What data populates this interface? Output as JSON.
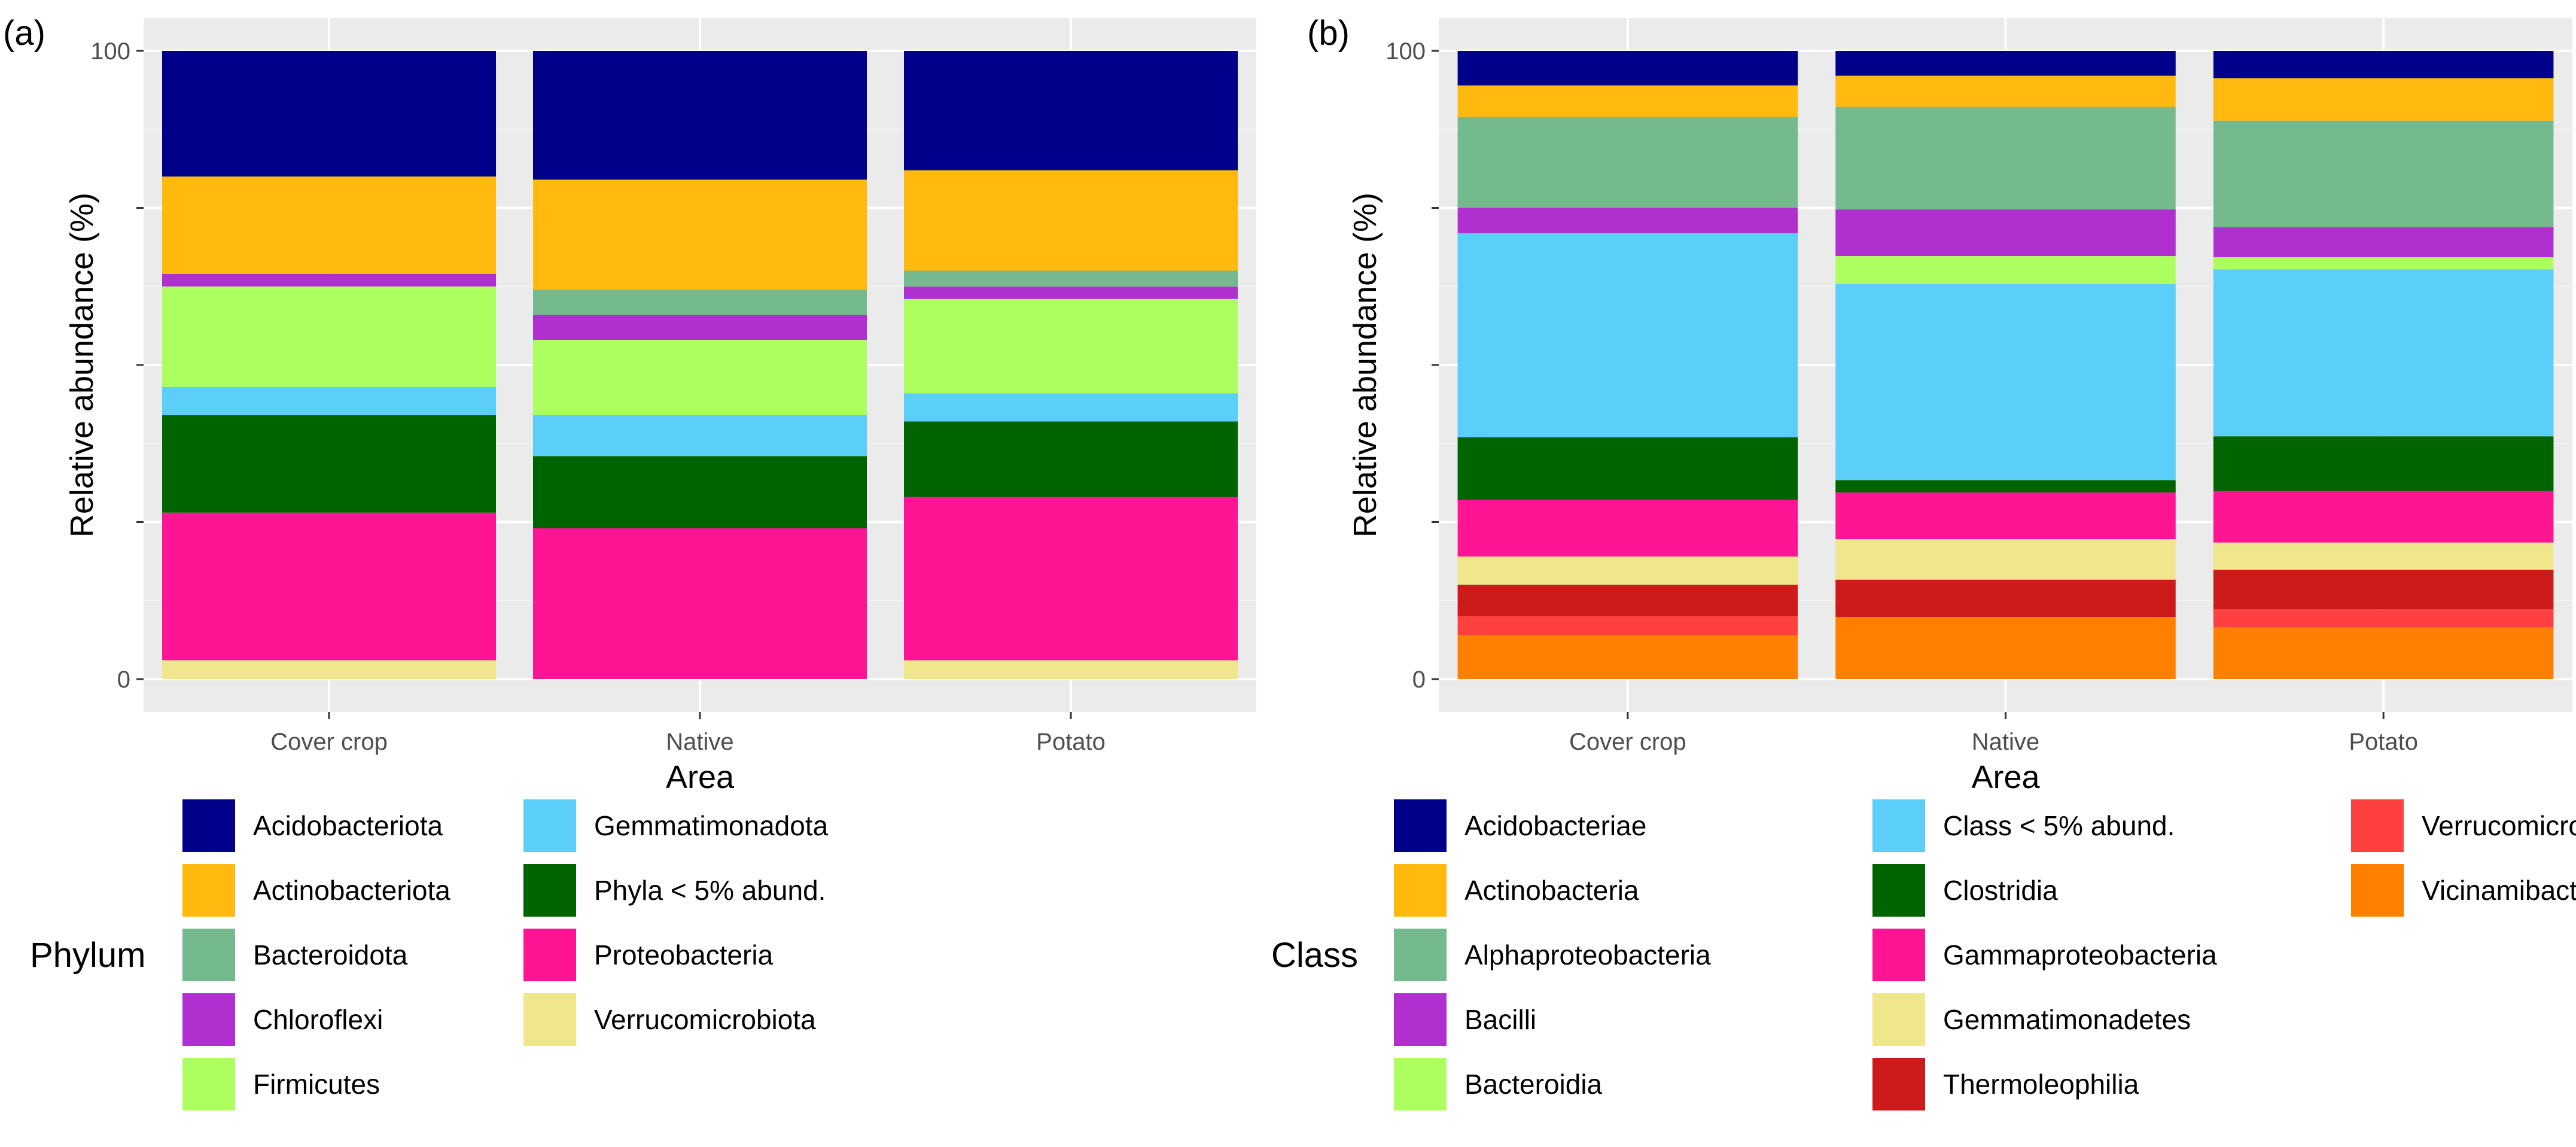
{
  "chart_data": [
    {
      "type": "bar",
      "stacked": true,
      "panel_label": "(a)",
      "xlabel": "Area",
      "ylabel": "Relative abundance (%)",
      "ylim": [
        0,
        100
      ],
      "y_tick_labels": [
        "0",
        "100"
      ],
      "grid": true,
      "categories": [
        "Cover crop",
        "Native",
        "Potato"
      ],
      "legend_title": "Phylum",
      "legend_position": "bottom",
      "series": [
        {
          "name": "Verrucomicrobiota",
          "color": "#F0E68C",
          "values": [
            3,
            0,
            3
          ]
        },
        {
          "name": "Proteobacteria",
          "color": "#FF1493",
          "values": [
            23.5,
            24,
            26
          ]
        },
        {
          "name": "Phyla < 5% abund.",
          "color": "#006400",
          "values": [
            15.5,
            11.5,
            12
          ]
        },
        {
          "name": "Gemmatimonadota",
          "color": "#5BCEFA",
          "values": [
            4.5,
            6.5,
            4.5
          ]
        },
        {
          "name": "Firmicutes",
          "color": "#ADFF5F",
          "values": [
            16,
            12,
            15
          ]
        },
        {
          "name": "Chloroflexi",
          "color": "#B030CF",
          "values": [
            2,
            4,
            2
          ]
        },
        {
          "name": "Bacteroidota",
          "color": "#75B98E",
          "values": [
            0,
            4,
            2.5
          ]
        },
        {
          "name": "Actinobacteriota",
          "color": "#FFB90F",
          "values": [
            15.5,
            17.5,
            16
          ]
        },
        {
          "name": "Acidobacteriota",
          "color": "#00008B",
          "values": [
            20,
            20.5,
            19
          ]
        }
      ]
    },
    {
      "type": "bar",
      "stacked": true,
      "panel_label": "(b)",
      "xlabel": "Area",
      "ylabel": "Relative abundance (%)",
      "ylim": [
        0,
        100
      ],
      "y_tick_labels": [
        "0",
        "100"
      ],
      "grid": true,
      "categories": [
        "Cover crop",
        "Native",
        "Potato"
      ],
      "legend_title": "Class",
      "legend_position": "bottom",
      "series": [
        {
          "name": "Vicinamibacteria",
          "color": "#FF7F00",
          "values": [
            7,
            10,
            8.5
          ]
        },
        {
          "name": "Verrucomicrobiae",
          "color": "#FF4040",
          "values": [
            3,
            0,
            3
          ]
        },
        {
          "name": "Thermoleophilia",
          "color": "#CD1A1A",
          "values": [
            5,
            6,
            6.5
          ]
        },
        {
          "name": "Gemmatimonadetes",
          "color": "#F0E68C",
          "values": [
            4.5,
            6.5,
            4.5
          ]
        },
        {
          "name": "Gammaproteobacteria",
          "color": "#FF1493",
          "values": [
            9,
            7.5,
            8.5
          ]
        },
        {
          "name": "Clostridia",
          "color": "#006400",
          "values": [
            10,
            2,
            9
          ]
        },
        {
          "name": "Class < 5% abund.",
          "color": "#5BCEFA",
          "values": [
            32.5,
            31.5,
            27.5
          ]
        },
        {
          "name": "Bacteroidia",
          "color": "#ADFF5F",
          "values": [
            0,
            4.5,
            2
          ]
        },
        {
          "name": "Bacilli",
          "color": "#B030CF",
          "values": [
            4,
            7.5,
            5
          ]
        },
        {
          "name": "Alphaproteobacteria",
          "color": "#75B98E",
          "values": [
            14.5,
            16.5,
            17.5
          ]
        },
        {
          "name": "Actinobacteria",
          "color": "#FFB90F",
          "values": [
            5,
            5,
            7
          ]
        },
        {
          "name": "Acidobacteriae",
          "color": "#00008B",
          "values": [
            5.5,
            4,
            4.5
          ]
        }
      ]
    }
  ],
  "legends": [
    {
      "title": "Phylum",
      "columns": [
        [
          "Acidobacteriota",
          "Actinobacteriota",
          "Bacteroidota",
          "Chloroflexi",
          "Firmicutes"
        ],
        [
          "Gemmatimonadota",
          "Phyla < 5% abund.",
          "Proteobacteria",
          "Verrucomicrobiota"
        ]
      ]
    },
    {
      "title": "Class",
      "columns": [
        [
          "Acidobacteriae",
          "Actinobacteria",
          "Alphaproteobacteria",
          "Bacilli",
          "Bacteroidia"
        ],
        [
          "Class < 5% abund.",
          "Clostridia",
          "Gammaproteobacteria",
          "Gemmatimonadetes",
          "Thermoleophilia"
        ],
        [
          "Verrucomicrobiae",
          "Vicinamibacteria"
        ]
      ]
    }
  ]
}
